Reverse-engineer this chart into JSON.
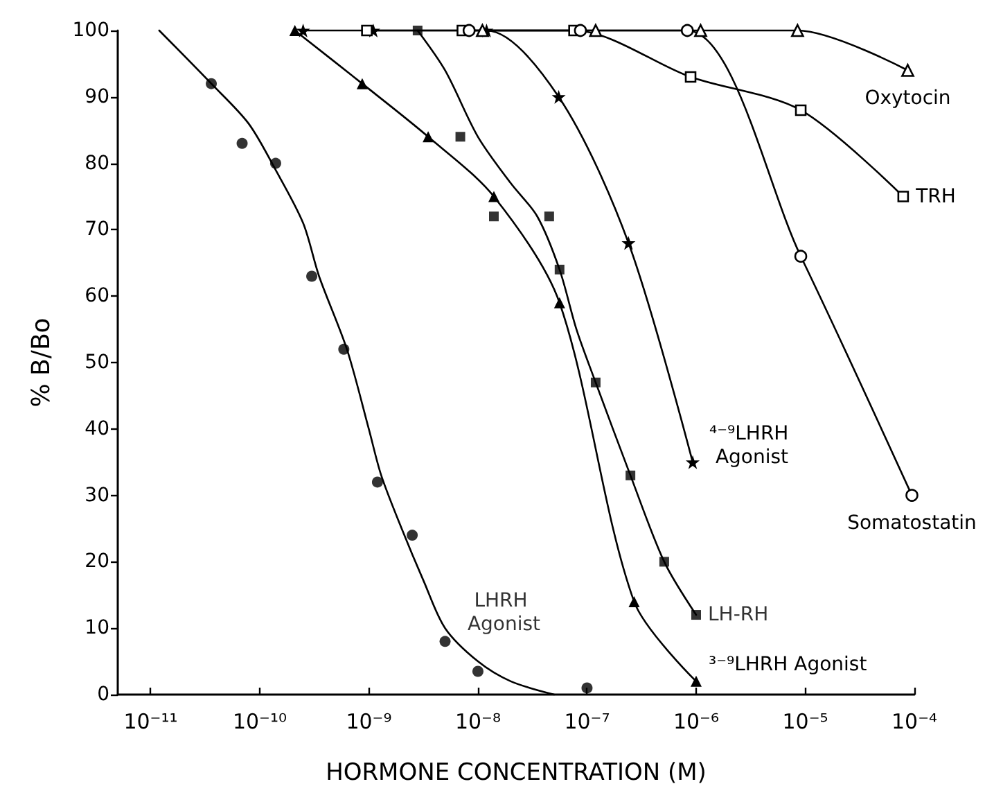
{
  "chart_data": {
    "type": "scatter",
    "xlabel": "HORMONE CONCENTRATION (M)",
    "ylabel": "% B/Bo",
    "log": "x",
    "grid": false,
    "legend": false,
    "xlim": [
      5e-12,
      0.0001
    ],
    "xticks": [
      {
        "value": 1e-11,
        "label": "10⁻¹¹"
      },
      {
        "value": 1e-10,
        "label": "10⁻¹⁰"
      },
      {
        "value": 1e-09,
        "label": "10⁻⁹"
      },
      {
        "value": 1e-08,
        "label": "10⁻⁸"
      },
      {
        "value": 1e-07,
        "label": "10⁻⁷"
      },
      {
        "value": 1e-06,
        "label": "10⁻⁶"
      },
      {
        "value": 1e-05,
        "label": "10⁻⁵"
      },
      {
        "value": 0.0001,
        "label": "10⁻⁴"
      }
    ],
    "ylim": [
      0,
      100
    ],
    "yticks": [
      0,
      10,
      20,
      30,
      40,
      50,
      60,
      70,
      80,
      90,
      100
    ],
    "series": [
      {
        "name": "LHRH Agonist",
        "marker": "circle",
        "color": "#000000",
        "x": [
          3.6e-11,
          6.9e-11,
          1.4e-10,
          3e-10,
          5.9e-10,
          1.2e-09,
          2.5e-09,
          5e-09,
          1e-08,
          1e-07
        ],
        "values": [
          92,
          83,
          80,
          63,
          52,
          32,
          24,
          8,
          3.5,
          1
        ]
      },
      {
        "type": "line",
        "marker": "none",
        "color": "#000000",
        "x": [
          1.2e-11,
          3.6e-11,
          7.9e-11,
          1.4e-10,
          2.5e-10,
          3.5e-10,
          6.3e-10,
          1e-09,
          1.3e-09,
          2e-09,
          3.2e-09,
          5e-09,
          1e-08,
          2e-08,
          5e-08
        ],
        "values": [
          100,
          92,
          86,
          79,
          71,
          63,
          52,
          40,
          33,
          25,
          17,
          10,
          5,
          2,
          0
        ]
      },
      {
        "name": "³⁻⁹LHRH Agonist",
        "type": "line",
        "marker": "triangle",
        "color": "#000000",
        "x": [
          2.1e-10,
          8.7e-10,
          3.5e-09,
          1.4e-08,
          5.6e-08,
          2.7e-07,
          1e-06
        ],
        "values": [
          100,
          92,
          84,
          75,
          59,
          14,
          2
        ]
      },
      {
        "name": "LH-RH",
        "marker": "square",
        "color": "#000000",
        "x": [
          2.8e-09,
          6.9e-09,
          1.4e-08,
          4.5e-08,
          5.6e-08,
          1.2e-07,
          2.5e-07,
          5.1e-07,
          1e-06
        ],
        "values": [
          100,
          84,
          72,
          72,
          64,
          47,
          33,
          20,
          12
        ]
      },
      {
        "type": "line",
        "marker": "none",
        "color": "#000000",
        "x": [
          2.8e-09,
          5e-09,
          1e-08,
          2e-08,
          3.5e-08,
          5.6e-08,
          8e-08,
          1.2e-07,
          2.5e-07,
          5.1e-07,
          1e-06
        ],
        "values": [
          100,
          94,
          84,
          77,
          72,
          64,
          55,
          47,
          33,
          20,
          12
        ]
      },
      {
        "name": "⁴⁻⁹LHRH Agonist",
        "type": "line",
        "marker": "star",
        "color": "#000000",
        "x": [
          2.5e-10,
          1.1e-09,
          1.2e-08,
          5.5e-08,
          2.4e-07,
          9.3e-07
        ],
        "values": [
          100,
          100,
          100,
          90,
          68,
          35
        ]
      },
      {
        "name": "TRH",
        "type": "line",
        "marker": "square",
        "color": "#000000",
        "x": [
          9.6e-10,
          7.2e-09,
          7.6e-08,
          8.9e-07,
          9.1e-06,
          7.9e-05
        ],
        "values": [
          100,
          100,
          100,
          93,
          88,
          75
        ]
      },
      {
        "name": "Somatostatin",
        "type": "line",
        "marker": "circle",
        "color": "#000000",
        "x": [
          8.3e-09,
          8.7e-08,
          8.3e-07,
          9.1e-06,
          9.5e-05
        ],
        "values": [
          100,
          100,
          100,
          66,
          30
        ]
      },
      {
        "name": "Oxytocin",
        "type": "line",
        "marker": "triangle",
        "color": "#000000",
        "x": [
          1.1e-08,
          1.2e-07,
          1.1e-06,
          8.5e-06,
          8.7e-05
        ],
        "values": [
          100,
          100,
          100,
          100,
          94
        ]
      }
    ]
  }
}
